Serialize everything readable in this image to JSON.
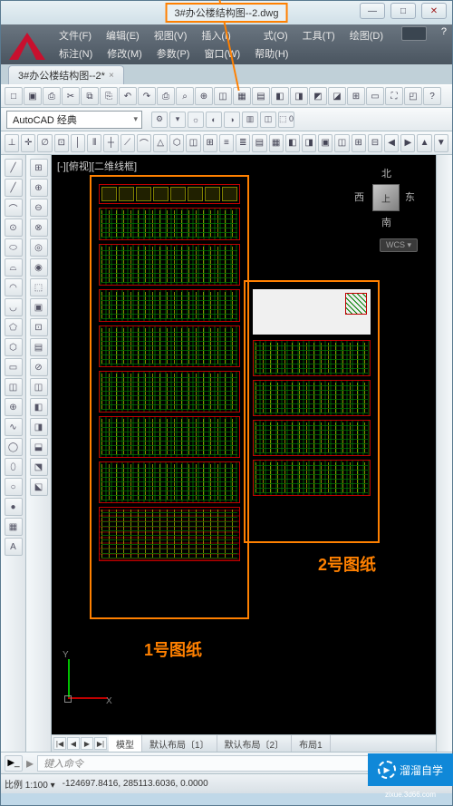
{
  "window": {
    "title_highlight": "3#办公楼结构图--2.dwg",
    "controls": {
      "min": "—",
      "max": "□",
      "close": "✕"
    }
  },
  "logo_color": "#c8102e",
  "menus": {
    "row1": [
      "文件(F)",
      "编辑(E)",
      "视图(V)",
      "插入(I)",
      "",
      "式(O)",
      "工具(T)",
      "绘图(D)"
    ],
    "row2": [
      "标注(N)",
      "修改(M)",
      "参数(P)",
      "窗口(W)",
      "帮助(H)"
    ],
    "help_icon": "?"
  },
  "doc_tab": {
    "label": "3#办公楼结构图--2*",
    "close": "×"
  },
  "toolbar1": [
    "□",
    "▣",
    "⎙",
    "✂",
    "⧉",
    "⎘",
    "↶",
    "↷",
    "⎙",
    "⌕",
    "⊕",
    "◫",
    "▦",
    "▤",
    "◧",
    "◨",
    "◩",
    "◪",
    "⊞",
    "▭",
    "⛶",
    "◰",
    "?"
  ],
  "style": {
    "workspace_label": "AutoCAD 经典",
    "mini": [
      "⚙",
      "▾",
      "☼",
      "◐",
      "◑",
      "▥",
      "◫",
      "⬚ 0"
    ]
  },
  "toolbar2": [
    "⊥",
    "✛",
    "∅",
    "⊡",
    "│",
    "⫴",
    "┼",
    "⟋",
    "⌒",
    "△",
    "⬡",
    "◫",
    "⊞",
    "≡",
    "≣",
    "▤",
    "▦",
    "◧",
    "◨",
    "▣",
    "◫",
    "⊞",
    "⊟",
    "◀",
    "▶",
    "▲",
    "▼"
  ],
  "left_tools": [
    "╱",
    "╱",
    "⌒",
    "⊙",
    "⬭",
    "⌓",
    "◠",
    "◡",
    "⬠",
    "⬡",
    "▭",
    "◫",
    "⊕",
    "∿",
    "◯",
    "⬯",
    "○",
    "●",
    "▦",
    "A"
  ],
  "left_tools2": [
    "⊞",
    "⊕",
    "⊖",
    "⊗",
    "◎",
    "◉",
    "⬚",
    "▣",
    "⊡",
    "▤",
    "⊘",
    "◫",
    "◧",
    "◨",
    "⬓",
    "⬔",
    "⬕"
  ],
  "canvas": {
    "view_label": "[-][俯视][二维线框]",
    "compass": {
      "n": "北",
      "s": "南",
      "e": "东",
      "w": "西",
      "top": "上"
    },
    "wcs": "WCS ▾",
    "sheet1_label": "1号图纸",
    "sheet2_label": "2号图纸",
    "ucs": {
      "x": "X",
      "y": "Y"
    },
    "colors": {
      "bg": "#000000",
      "highlight": "#ff8000",
      "red": "#c00000",
      "green": "#008000"
    }
  },
  "layout_tabs": {
    "nav": [
      "|◀",
      "◀",
      "▶",
      "▶|"
    ],
    "tabs": [
      "模型",
      "默认布局〔1〕",
      "默认布局〔2〕",
      "布局1"
    ]
  },
  "cmdline": {
    "icon": "▶_",
    "arrow": "▸",
    "placeholder": "键入命令"
  },
  "statusbar": {
    "scale_label": "比例 1:100 ▾",
    "coords": "-124697.8416, 285113.6036, 0.0000"
  },
  "watermark": {
    "brand": "溜溜自学",
    "url": "zixue.3d66.com"
  }
}
